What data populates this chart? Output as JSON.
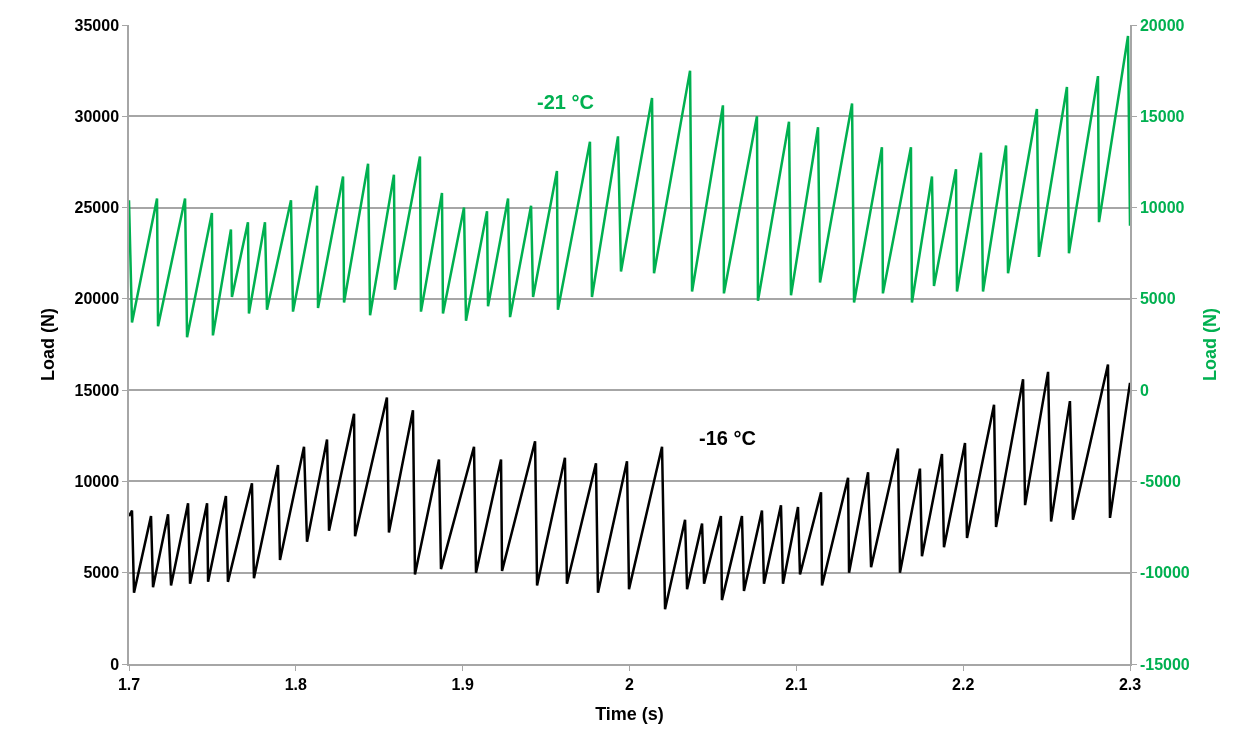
{
  "chart_data": {
    "type": "line",
    "xlabel": "Time (s)",
    "ylabel": "Load (N)",
    "y2label": "Load (N)",
    "xlim": [
      1.7,
      2.3
    ],
    "xticks": [
      1.7,
      1.8,
      1.9,
      2,
      2.1,
      2.2,
      2.3
    ],
    "ylim": [
      0,
      35000
    ],
    "yticks": [
      0,
      5000,
      10000,
      15000,
      20000,
      25000,
      30000,
      35000
    ],
    "y2lim": [
      -15000,
      20000
    ],
    "y2ticks": [
      -15000,
      -10000,
      -5000,
      0,
      5000,
      10000,
      15000,
      20000
    ],
    "grid": "y",
    "legend": false,
    "marker": "none",
    "line_style": "solid",
    "series": [
      {
        "name": "-16 °C",
        "color": "#000000",
        "axis": "y",
        "x": [
          1.7,
          1.7018,
          1.703,
          1.7132,
          1.7144,
          1.7234,
          1.7252,
          1.7354,
          1.7366,
          1.7468,
          1.7474,
          1.7581,
          1.7593,
          1.7737,
          1.7749,
          1.7893,
          1.7905,
          1.8049,
          1.8067,
          1.8187,
          1.8199,
          1.8349,
          1.8355,
          1.8546,
          1.8558,
          1.8702,
          1.8714,
          1.8858,
          1.887,
          1.9068,
          1.908,
          1.923,
          1.9236,
          1.9434,
          1.9446,
          1.9613,
          1.9625,
          1.9799,
          1.9811,
          1.9985,
          1.9997,
          2.0195,
          2.0213,
          2.0333,
          2.0345,
          2.0435,
          2.0447,
          2.0548,
          2.0554,
          2.0674,
          2.0686,
          2.0794,
          2.0806,
          2.0908,
          2.092,
          2.101,
          2.1022,
          2.1148,
          2.1154,
          2.131,
          2.1316,
          2.143,
          2.1448,
          2.1609,
          2.1621,
          2.1741,
          2.1753,
          2.1873,
          2.1885,
          2.2011,
          2.2023,
          2.2185,
          2.2197,
          2.2359,
          2.2371,
          2.2509,
          2.2527,
          2.264,
          2.2658,
          2.2868,
          2.288,
          2.3
        ],
        "values": [
          8100,
          8400,
          3900,
          8100,
          4200,
          8200,
          4300,
          8800,
          4400,
          8800,
          4500,
          9200,
          4500,
          9900,
          4700,
          10900,
          5700,
          11900,
          6700,
          12300,
          7300,
          13700,
          7000,
          14600,
          7200,
          13900,
          4900,
          11200,
          5200,
          11900,
          5000,
          11200,
          5100,
          12200,
          4300,
          11300,
          4400,
          11000,
          3900,
          11100,
          4100,
          11900,
          3000,
          7900,
          4100,
          7700,
          4400,
          8100,
          3500,
          8100,
          4000,
          8400,
          4400,
          8700,
          4400,
          8600,
          4900,
          9400,
          4300,
          10200,
          5000,
          10500,
          5300,
          11800,
          5000,
          10700,
          5900,
          11500,
          6400,
          12100,
          6900,
          14200,
          7500,
          15600,
          8700,
          16000,
          7800,
          14400,
          7900,
          16400,
          8000,
          15400
        ]
      },
      {
        "name": "-21 °C",
        "color": "#00b050",
        "axis": "y2",
        "x": [
          1.7,
          1.7018,
          1.7168,
          1.7174,
          1.7336,
          1.7348,
          1.7497,
          1.7503,
          1.7611,
          1.7617,
          1.7713,
          1.7719,
          1.7815,
          1.7827,
          1.7971,
          1.7983,
          1.8127,
          1.8133,
          1.8283,
          1.8289,
          1.8433,
          1.8445,
          1.8588,
          1.8594,
          1.8744,
          1.875,
          1.8876,
          1.8882,
          1.9008,
          1.902,
          1.9146,
          1.9152,
          1.9272,
          1.9284,
          1.941,
          1.9422,
          1.9565,
          1.9571,
          1.9763,
          1.9775,
          1.9931,
          1.9949,
          2.0135,
          2.0147,
          2.0363,
          2.0375,
          2.056,
          2.0566,
          2.0764,
          2.077,
          2.0956,
          2.0968,
          2.113,
          2.1142,
          2.1334,
          2.1346,
          2.1513,
          2.1519,
          2.1687,
          2.1693,
          2.1813,
          2.1825,
          2.1957,
          2.1963,
          2.2107,
          2.2119,
          2.2257,
          2.2269,
          2.2442,
          2.2454,
          2.2622,
          2.2634,
          2.2808,
          2.2814,
          2.2988,
          2.3
        ],
        "values": [
          10400,
          3700,
          10500,
          3500,
          10500,
          2900,
          9700,
          3000,
          8800,
          5100,
          9200,
          4200,
          9200,
          4400,
          10400,
          4300,
          11200,
          4500,
          11700,
          4800,
          12400,
          4100,
          11800,
          5500,
          12800,
          4300,
          10800,
          4200,
          10000,
          3800,
          9800,
          4600,
          10500,
          4000,
          10100,
          5100,
          12000,
          4400,
          13600,
          5100,
          13900,
          6500,
          16000,
          6400,
          17500,
          5400,
          15600,
          5300,
          15000,
          4900,
          14700,
          5200,
          14400,
          5900,
          15700,
          4800,
          13300,
          5300,
          13300,
          4800,
          11700,
          5700,
          12100,
          5400,
          13000,
          5400,
          13400,
          6400,
          15400,
          7300,
          16600,
          7500,
          17200,
          9200,
          19400,
          9000
        ]
      }
    ]
  }
}
